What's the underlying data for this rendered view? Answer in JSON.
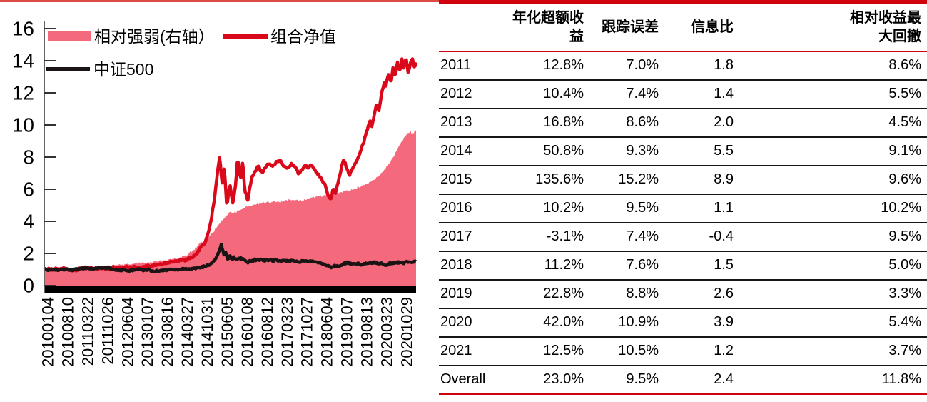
{
  "page": {
    "top_rule_color": "#DB4B45"
  },
  "chart_data": {
    "type": "area+line",
    "title": "",
    "y_axis": {
      "side": "left",
      "min": 0,
      "max": 16,
      "step": 2
    },
    "right_axis_ticks_visible": false,
    "grid": false,
    "legend_position": "top-left",
    "x_tick_labels": [
      "20100104",
      "20100810",
      "20110322",
      "20111026",
      "20120604",
      "20130107",
      "20130816",
      "20140327",
      "20141031",
      "20150605",
      "20160108",
      "20160812",
      "20170323",
      "20171027",
      "20180604",
      "20190107",
      "20190813",
      "20200323",
      "20201029"
    ],
    "series": [
      {
        "name": "相对强弱(右轴）",
        "kind": "area",
        "axis": "right",
        "color": "#F5697C",
        "points": [
          [
            0,
            1.0
          ],
          [
            0.04,
            1.02
          ],
          [
            0.07,
            1.05
          ],
          [
            0.1,
            1.08
          ],
          [
            0.117,
            1.12
          ],
          [
            0.145,
            1.16
          ],
          [
            0.171,
            1.22
          ],
          [
            0.198,
            1.28
          ],
          [
            0.225,
            1.33
          ],
          [
            0.251,
            1.4
          ],
          [
            0.278,
            1.45
          ],
          [
            0.305,
            1.52
          ],
          [
            0.332,
            1.58
          ],
          [
            0.359,
            1.7
          ],
          [
            0.386,
            1.95
          ],
          [
            0.401,
            2.2
          ],
          [
            0.418,
            2.6
          ],
          [
            0.432,
            2.85
          ],
          [
            0.44,
            3.0
          ],
          [
            0.449,
            3.2
          ],
          [
            0.459,
            3.5
          ],
          [
            0.466,
            3.7
          ],
          [
            0.472,
            3.9
          ],
          [
            0.484,
            4.2
          ],
          [
            0.491,
            4.35
          ],
          [
            0.499,
            4.6
          ],
          [
            0.507,
            4.5
          ],
          [
            0.514,
            4.55
          ],
          [
            0.524,
            4.7
          ],
          [
            0.534,
            4.8
          ],
          [
            0.547,
            4.9
          ],
          [
            0.557,
            5.0
          ],
          [
            0.566,
            5.05
          ],
          [
            0.576,
            5.1
          ],
          [
            0.595,
            5.2
          ],
          [
            0.614,
            5.25
          ],
          [
            0.633,
            5.2
          ],
          [
            0.654,
            5.3
          ],
          [
            0.674,
            5.35
          ],
          [
            0.693,
            5.3
          ],
          [
            0.708,
            5.4
          ],
          [
            0.727,
            5.5
          ],
          [
            0.747,
            5.6
          ],
          [
            0.762,
            5.65
          ],
          [
            0.783,
            5.7
          ],
          [
            0.798,
            5.8
          ],
          [
            0.814,
            5.9
          ],
          [
            0.831,
            6.0
          ],
          [
            0.85,
            6.15
          ],
          [
            0.869,
            6.35
          ],
          [
            0.889,
            6.6
          ],
          [
            0.908,
            7.0
          ],
          [
            0.925,
            7.5
          ],
          [
            0.938,
            8.0
          ],
          [
            0.95,
            8.5
          ],
          [
            0.962,
            9.0
          ],
          [
            0.973,
            9.35
          ],
          [
            0.985,
            9.55
          ],
          [
            0.99,
            9.45
          ],
          [
            1,
            9.7
          ]
        ]
      },
      {
        "name": "组合净值",
        "kind": "line",
        "axis": "left",
        "color": "#D9081A",
        "points": [
          [
            0,
            1.0
          ],
          [
            0.025,
            1.04
          ],
          [
            0.04,
            0.98
          ],
          [
            0.055,
            1.06
          ],
          [
            0.07,
            1.0
          ],
          [
            0.085,
            0.96
          ],
          [
            0.1,
            1.08
          ],
          [
            0.117,
            1.14
          ],
          [
            0.13,
            1.08
          ],
          [
            0.145,
            1.02
          ],
          [
            0.16,
            1.1
          ],
          [
            0.175,
            1.05
          ],
          [
            0.19,
            1.12
          ],
          [
            0.205,
            1.08
          ],
          [
            0.22,
            1.14
          ],
          [
            0.235,
            1.1
          ],
          [
            0.25,
            1.16
          ],
          [
            0.265,
            1.12
          ],
          [
            0.28,
            1.2
          ],
          [
            0.295,
            1.26
          ],
          [
            0.31,
            1.32
          ],
          [
            0.325,
            1.38
          ],
          [
            0.34,
            1.46
          ],
          [
            0.355,
            1.52
          ],
          [
            0.37,
            1.58
          ],
          [
            0.386,
            1.62
          ],
          [
            0.401,
            1.78
          ],
          [
            0.412,
            2.05
          ],
          [
            0.42,
            2.35
          ],
          [
            0.432,
            2.65
          ],
          [
            0.44,
            3.2
          ],
          [
            0.449,
            4.1
          ],
          [
            0.459,
            5.6
          ],
          [
            0.466,
            7.1
          ],
          [
            0.472,
            8.05
          ],
          [
            0.478,
            6.3
          ],
          [
            0.484,
            7.4
          ],
          [
            0.491,
            4.95
          ],
          [
            0.499,
            6.4
          ],
          [
            0.507,
            5.1
          ],
          [
            0.514,
            6.1
          ],
          [
            0.52,
            7.9
          ],
          [
            0.528,
            6.6
          ],
          [
            0.534,
            7.8
          ],
          [
            0.539,
            6.0
          ],
          [
            0.547,
            5.3
          ],
          [
            0.557,
            6.6
          ],
          [
            0.566,
            7.1
          ],
          [
            0.576,
            7.45
          ],
          [
            0.585,
            7.05
          ],
          [
            0.595,
            7.35
          ],
          [
            0.605,
            7.62
          ],
          [
            0.614,
            7.4
          ],
          [
            0.624,
            7.7
          ],
          [
            0.633,
            7.78
          ],
          [
            0.643,
            7.5
          ],
          [
            0.654,
            7.3
          ],
          [
            0.664,
            7.6
          ],
          [
            0.674,
            7.45
          ],
          [
            0.683,
            7.0
          ],
          [
            0.693,
            7.2
          ],
          [
            0.702,
            7.52
          ],
          [
            0.708,
            7.25
          ],
          [
            0.718,
            7.5
          ],
          [
            0.727,
            7.2
          ],
          [
            0.737,
            6.9
          ],
          [
            0.747,
            6.55
          ],
          [
            0.756,
            6.2
          ],
          [
            0.762,
            5.75
          ],
          [
            0.77,
            5.3
          ],
          [
            0.777,
            6.0
          ],
          [
            0.783,
            5.75
          ],
          [
            0.791,
            6.5
          ],
          [
            0.798,
            7.2
          ],
          [
            0.806,
            7.9
          ],
          [
            0.814,
            7.3
          ],
          [
            0.821,
            6.9
          ],
          [
            0.831,
            7.4
          ],
          [
            0.841,
            7.8
          ],
          [
            0.85,
            8.3
          ],
          [
            0.86,
            9.0
          ],
          [
            0.869,
            9.7
          ],
          [
            0.875,
            10.3
          ],
          [
            0.881,
            9.9
          ],
          [
            0.889,
            10.8
          ],
          [
            0.894,
            11.3
          ],
          [
            0.9,
            10.9
          ],
          [
            0.908,
            12.0
          ],
          [
            0.914,
            12.6
          ],
          [
            0.919,
            12.4
          ],
          [
            0.925,
            13.2
          ],
          [
            0.933,
            12.7
          ],
          [
            0.938,
            13.6
          ],
          [
            0.944,
            13.0
          ],
          [
            0.95,
            13.9
          ],
          [
            0.956,
            13.3
          ],
          [
            0.962,
            14.1
          ],
          [
            0.967,
            13.5
          ],
          [
            0.973,
            14.2
          ],
          [
            0.979,
            13.2
          ],
          [
            0.985,
            13.9
          ],
          [
            0.99,
            14.1
          ],
          [
            0.996,
            13.6
          ],
          [
            1,
            13.9
          ]
        ]
      },
      {
        "name": "中证500",
        "kind": "line",
        "axis": "left",
        "color": "#1A1414",
        "points": [
          [
            0,
            1.0
          ],
          [
            0.03,
            0.95
          ],
          [
            0.05,
            1.02
          ],
          [
            0.07,
            0.97
          ],
          [
            0.09,
            1.04
          ],
          [
            0.11,
            1.1
          ],
          [
            0.125,
            1.05
          ],
          [
            0.14,
            1.08
          ],
          [
            0.155,
            1.12
          ],
          [
            0.171,
            1.08
          ],
          [
            0.185,
            1.0
          ],
          [
            0.198,
            0.94
          ],
          [
            0.212,
            0.98
          ],
          [
            0.225,
            0.92
          ],
          [
            0.24,
            0.98
          ],
          [
            0.251,
            1.02
          ],
          [
            0.265,
            0.96
          ],
          [
            0.278,
            0.98
          ],
          [
            0.292,
            0.92
          ],
          [
            0.305,
            0.88
          ],
          [
            0.318,
            0.94
          ],
          [
            0.332,
            0.96
          ],
          [
            0.345,
            1.02
          ],
          [
            0.359,
            1.0
          ],
          [
            0.372,
            1.05
          ],
          [
            0.386,
            1.02
          ],
          [
            0.401,
            1.06
          ],
          [
            0.418,
            1.12
          ],
          [
            0.432,
            1.18
          ],
          [
            0.449,
            1.35
          ],
          [
            0.462,
            1.7
          ],
          [
            0.47,
            2.1
          ],
          [
            0.476,
            2.55
          ],
          [
            0.481,
            2.1
          ],
          [
            0.484,
            1.9
          ],
          [
            0.489,
            2.05
          ],
          [
            0.493,
            1.6
          ],
          [
            0.499,
            1.9
          ],
          [
            0.505,
            1.6
          ],
          [
            0.51,
            1.78
          ],
          [
            0.516,
            1.62
          ],
          [
            0.524,
            1.7
          ],
          [
            0.534,
            1.66
          ],
          [
            0.542,
            1.52
          ],
          [
            0.547,
            1.45
          ],
          [
            0.557,
            1.56
          ],
          [
            0.566,
            1.6
          ],
          [
            0.576,
            1.58
          ],
          [
            0.586,
            1.62
          ],
          [
            0.595,
            1.56
          ],
          [
            0.605,
            1.6
          ],
          [
            0.614,
            1.56
          ],
          [
            0.624,
            1.6
          ],
          [
            0.633,
            1.54
          ],
          [
            0.643,
            1.58
          ],
          [
            0.654,
            1.52
          ],
          [
            0.664,
            1.56
          ],
          [
            0.674,
            1.52
          ],
          [
            0.683,
            1.48
          ],
          [
            0.693,
            1.52
          ],
          [
            0.702,
            1.55
          ],
          [
            0.708,
            1.5
          ],
          [
            0.718,
            1.52
          ],
          [
            0.727,
            1.48
          ],
          [
            0.737,
            1.42
          ],
          [
            0.747,
            1.38
          ],
          [
            0.756,
            1.3
          ],
          [
            0.762,
            1.26
          ],
          [
            0.77,
            1.15
          ],
          [
            0.78,
            1.22
          ],
          [
            0.791,
            1.18
          ],
          [
            0.798,
            1.28
          ],
          [
            0.806,
            1.35
          ],
          [
            0.814,
            1.42
          ],
          [
            0.821,
            1.36
          ],
          [
            0.831,
            1.32
          ],
          [
            0.841,
            1.38
          ],
          [
            0.85,
            1.32
          ],
          [
            0.86,
            1.36
          ],
          [
            0.869,
            1.38
          ],
          [
            0.88,
            1.42
          ],
          [
            0.889,
            1.44
          ],
          [
            0.9,
            1.38
          ],
          [
            0.908,
            1.36
          ],
          [
            0.919,
            1.3
          ],
          [
            0.925,
            1.34
          ],
          [
            0.933,
            1.38
          ],
          [
            0.938,
            1.44
          ],
          [
            0.944,
            1.4
          ],
          [
            0.95,
            1.44
          ],
          [
            0.956,
            1.4
          ],
          [
            0.962,
            1.46
          ],
          [
            0.967,
            1.42
          ],
          [
            0.973,
            1.5
          ],
          [
            0.979,
            1.44
          ],
          [
            0.985,
            1.48
          ],
          [
            0.99,
            1.46
          ],
          [
            0.996,
            1.48
          ],
          [
            1,
            1.5
          ]
        ]
      }
    ]
  },
  "table": {
    "border_color": "#D0000C",
    "row_line_color": "#151515",
    "columns": [
      "",
      "年化超额收\n益",
      "跟踪误差",
      "信息比",
      "相对收益最\n大回撤"
    ],
    "rows": [
      [
        "2011",
        "12.8%",
        "7.0%",
        "1.8",
        "8.6%"
      ],
      [
        "2012",
        "10.4%",
        "7.4%",
        "1.4",
        "5.5%"
      ],
      [
        "2013",
        "16.8%",
        "8.6%",
        "2.0",
        "4.5%"
      ],
      [
        "2014",
        "50.8%",
        "9.3%",
        "5.5",
        "9.1%"
      ],
      [
        "2015",
        "135.6%",
        "15.2%",
        "8.9",
        "9.6%"
      ],
      [
        "2016",
        "10.2%",
        "9.5%",
        "1.1",
        "10.2%"
      ],
      [
        "2017",
        "-3.1%",
        "7.4%",
        "-0.4",
        "9.5%"
      ],
      [
        "2018",
        "11.2%",
        "7.6%",
        "1.5",
        "5.0%"
      ],
      [
        "2019",
        "22.8%",
        "8.8%",
        "2.6",
        "3.3%"
      ],
      [
        "2020",
        "42.0%",
        "10.9%",
        "3.9",
        "5.4%"
      ],
      [
        "2021",
        "12.5%",
        "10.5%",
        "1.2",
        "3.7%"
      ],
      [
        "Overall",
        "23.0%",
        "9.5%",
        "2.4",
        "11.8%"
      ]
    ]
  }
}
